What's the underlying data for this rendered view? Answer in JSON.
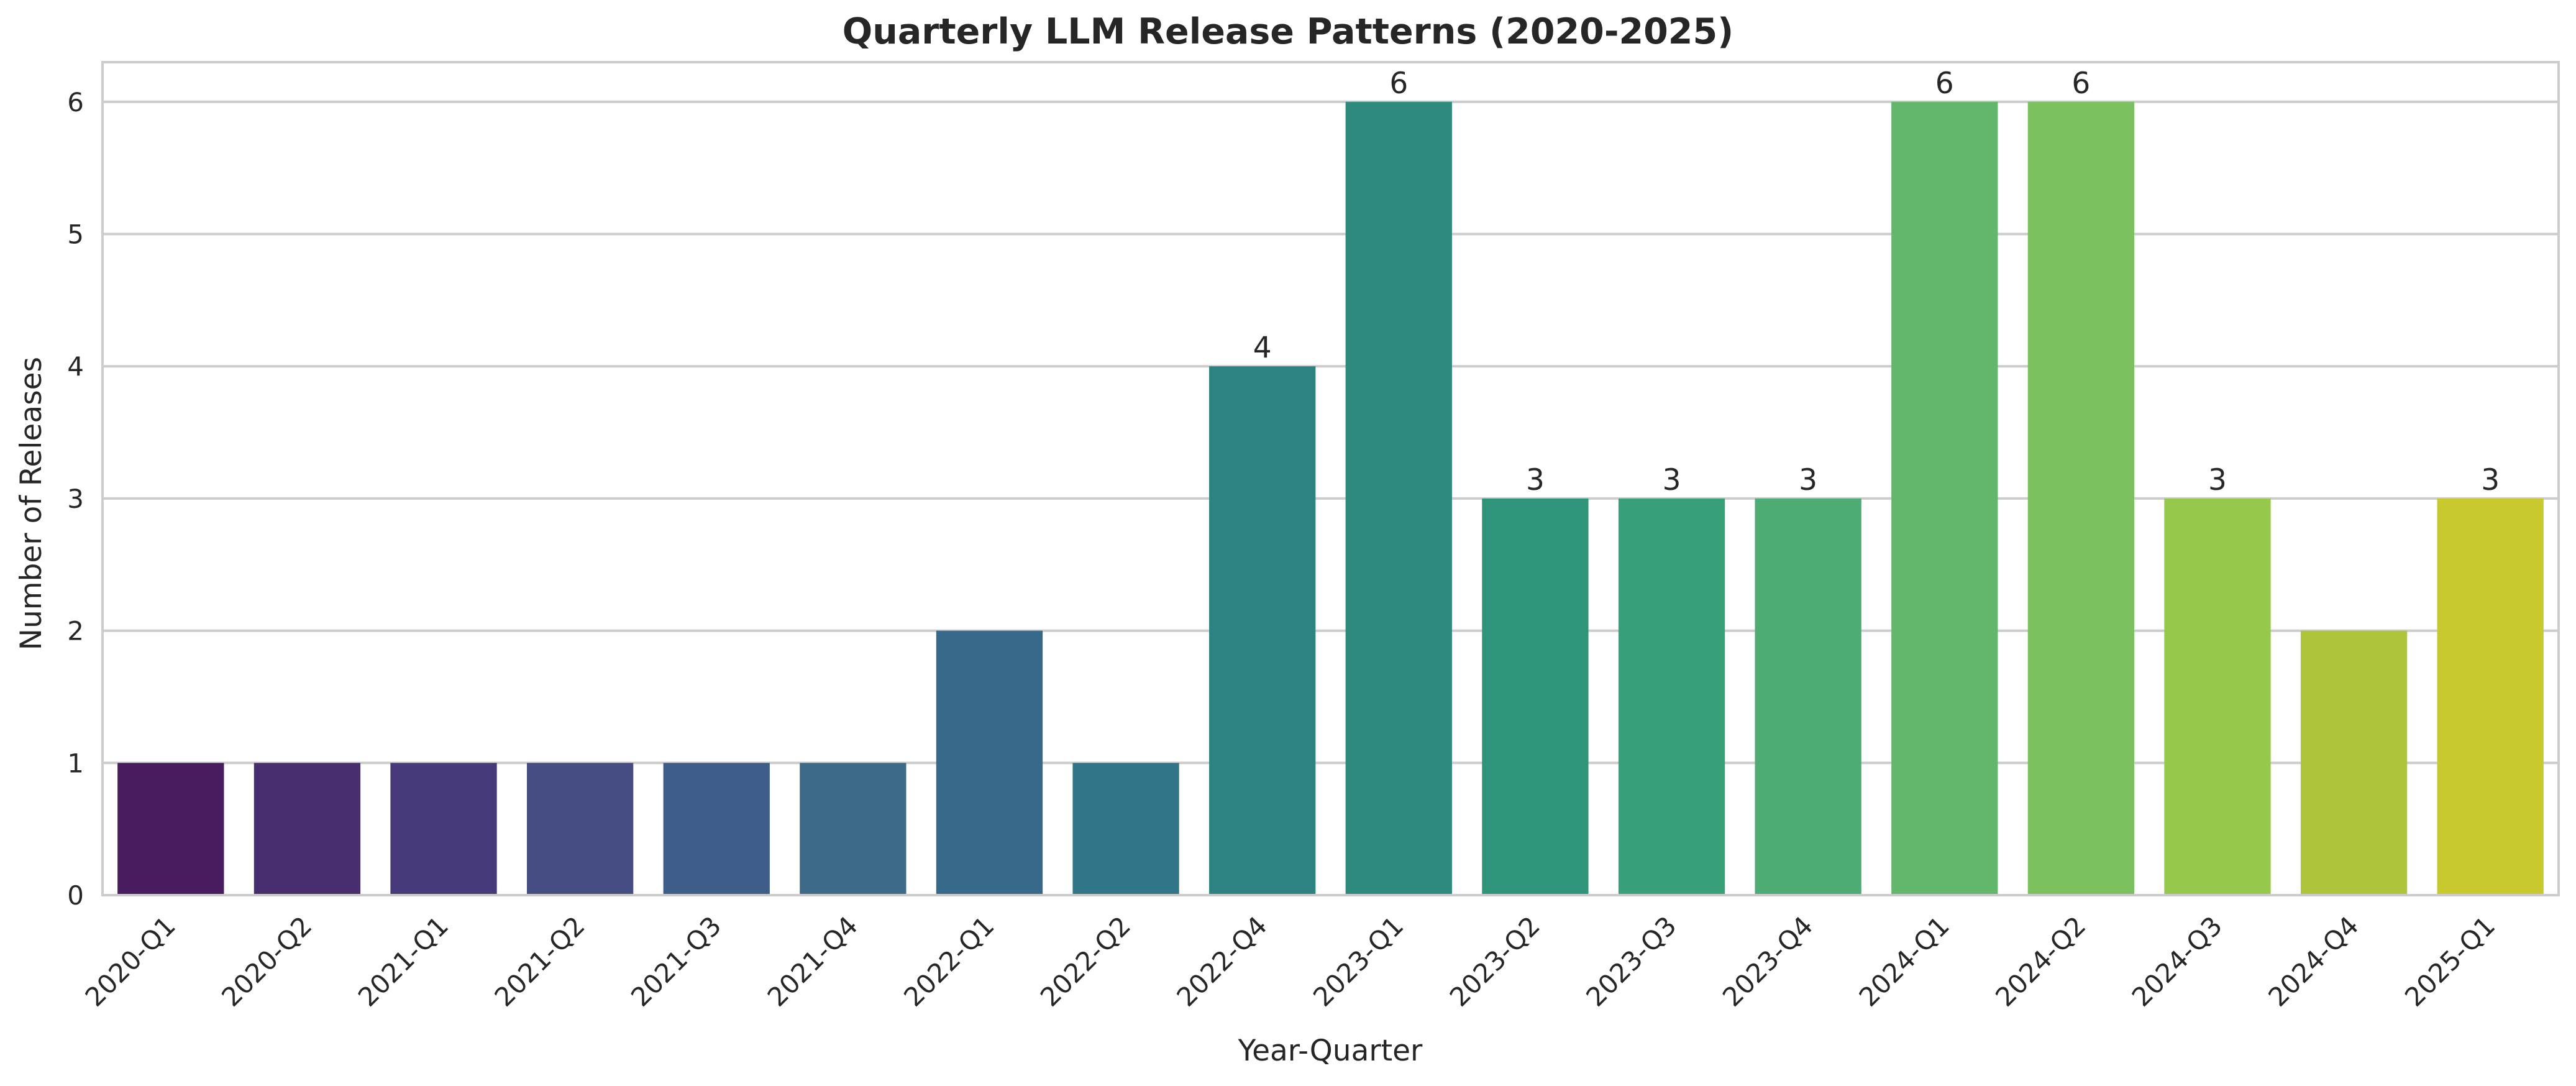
{
  "chart_data": {
    "type": "bar",
    "title": "Quarterly LLM Release Patterns (2020-2025)",
    "xlabel": "Year-Quarter",
    "ylabel": "Number of Releases",
    "categories": [
      "2020-Q1",
      "2020-Q2",
      "2021-Q1",
      "2021-Q2",
      "2021-Q3",
      "2021-Q4",
      "2022-Q1",
      "2022-Q2",
      "2022-Q4",
      "2023-Q1",
      "2023-Q2",
      "2023-Q3",
      "2023-Q4",
      "2024-Q1",
      "2024-Q2",
      "2024-Q3",
      "2024-Q4",
      "2025-Q1"
    ],
    "values": [
      1,
      1,
      1,
      1,
      1,
      1,
      2,
      1,
      4,
      6,
      3,
      3,
      3,
      6,
      6,
      3,
      2,
      3
    ],
    "data_labels": [
      null,
      null,
      null,
      null,
      null,
      null,
      null,
      null,
      "4",
      "6",
      "3",
      "3",
      "3",
      "6",
      "6",
      "3",
      null,
      "3"
    ],
    "colors": [
      "#481c5e",
      "#482e6e",
      "#47397a",
      "#454d82",
      "#3f5d89",
      "#3c6a88",
      "#37698a",
      "#317688",
      "#2f8282",
      "#2d8a7d",
      "#2f957a",
      "#37a078",
      "#4dab73",
      "#63b76d",
      "#7bc15f",
      "#96c84c",
      "#aec53b",
      "#c8c92f"
    ],
    "yticks": [
      "0",
      "1",
      "2",
      "3",
      "4",
      "5",
      "6"
    ],
    "ylim": [
      0,
      6.3
    ],
    "grid": true,
    "legend": "none"
  }
}
